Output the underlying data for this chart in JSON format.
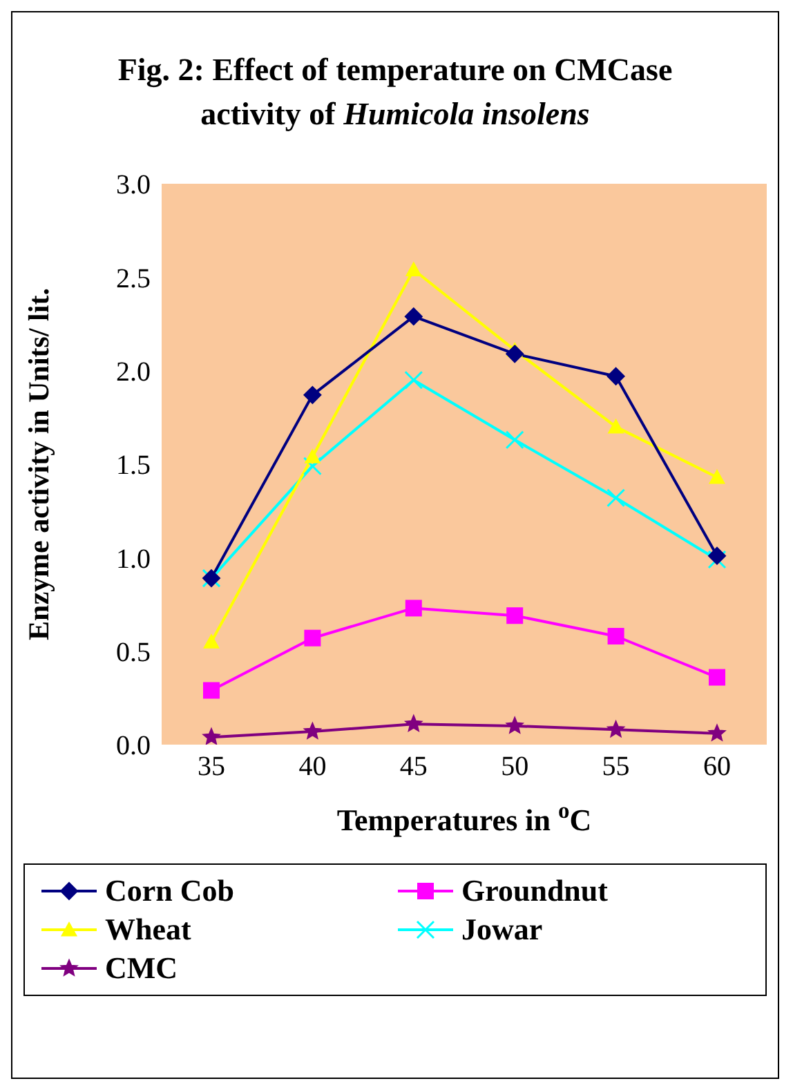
{
  "chart_data": {
    "type": "line",
    "title": "Fig. 2: Effect of temperature on CMCase activity of Humicola insolens",
    "xlabel": "Temperatures in $^{o}$C",
    "ylabel": "Enzyme activity in Units/ lit.",
    "categories": [
      "35",
      "40",
      "45",
      "50",
      "55",
      "60"
    ],
    "series": [
      {
        "name": "Corn Cob",
        "color": "#000080",
        "marker": "diamond",
        "values": [
          0.89,
          1.87,
          2.29,
          2.09,
          1.97,
          1.01
        ]
      },
      {
        "name": "Groundnut",
        "color": "#ff00ff",
        "marker": "square",
        "values": [
          0.29,
          0.57,
          0.73,
          0.69,
          0.58,
          0.36
        ]
      },
      {
        "name": "Wheat",
        "color": "#ffff00",
        "marker": "triangle",
        "values": [
          0.55,
          1.54,
          2.54,
          2.11,
          1.7,
          1.43
        ]
      },
      {
        "name": "Jowar",
        "color": "#00ffff",
        "marker": "cross",
        "values": [
          0.89,
          1.49,
          1.95,
          1.63,
          1.32,
          0.99
        ]
      },
      {
        "name": "CMC",
        "color": "#800080",
        "marker": "star",
        "values": [
          0.04,
          0.07,
          0.11,
          0.1,
          0.08,
          0.06
        ]
      }
    ],
    "ylim": [
      0,
      3
    ],
    "yticks": [
      {
        "value": 0,
        "label": "0.0"
      },
      {
        "value": 0.5,
        "label": "0.5"
      },
      {
        "value": 1,
        "label": "1.0"
      },
      {
        "value": 1.5,
        "label": "1.5"
      },
      {
        "value": 2,
        "label": "2.0"
      },
      {
        "value": 2.5,
        "label": "2.5"
      },
      {
        "value": 3,
        "label": "3.0"
      }
    ],
    "grid": false,
    "legend": "bottom",
    "line_style": "solid"
  }
}
